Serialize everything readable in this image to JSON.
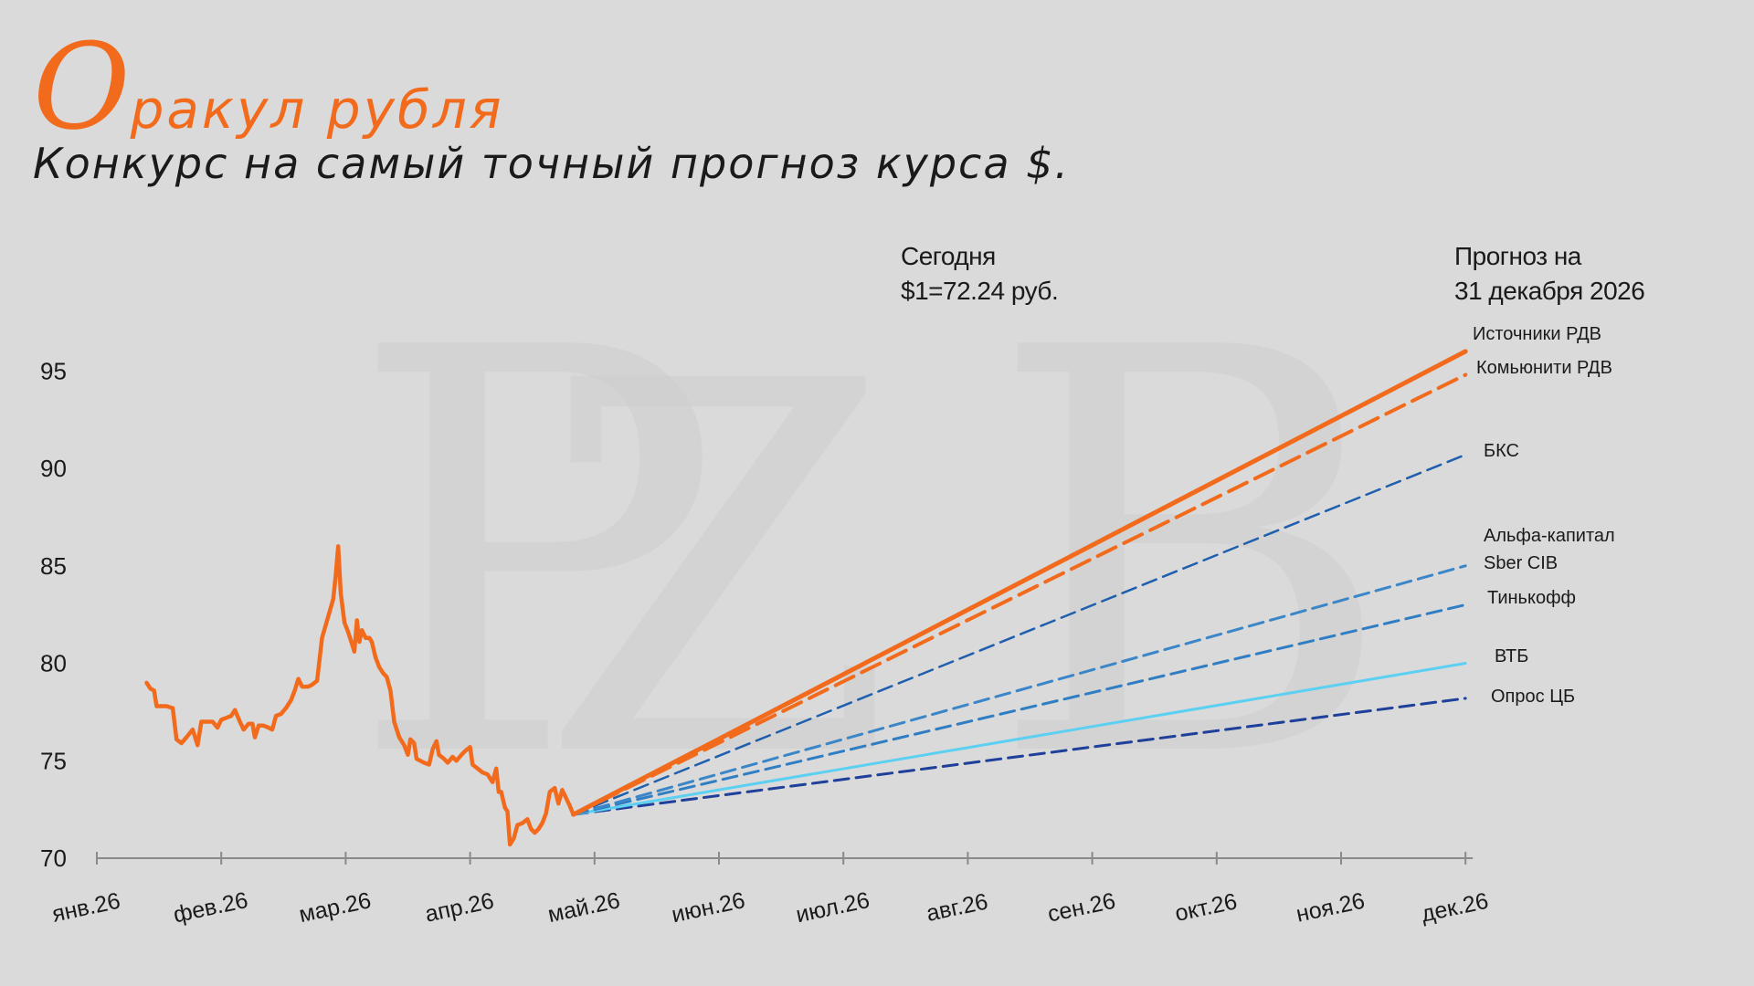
{
  "header": {
    "title_initial": "О",
    "title_rest": "ракул рубля",
    "subtitle": "Конкурс на самый точный прогноз курса $."
  },
  "annotations": {
    "today_line1": "Сегодня",
    "today_line2": "$1=72.24 руб.",
    "forecast_line1": "Прогноз на",
    "forecast_line2": "31 декабря 2026"
  },
  "colors": {
    "background": "#dadada",
    "history": "#f26b1d",
    "axis": "#8a8a8a"
  },
  "chart_data": {
    "type": "line",
    "title": "",
    "xlabel": "",
    "ylabel": "",
    "ylim": [
      70,
      97
    ],
    "yticks": [
      70,
      75,
      80,
      85,
      90,
      95
    ],
    "x_range": [
      0,
      11
    ],
    "x_ticks": [
      {
        "x": 0,
        "label": "янв.26"
      },
      {
        "x": 1,
        "label": "фев.26"
      },
      {
        "x": 2,
        "label": "мар.26"
      },
      {
        "x": 3,
        "label": "апр.26"
      },
      {
        "x": 4,
        "label": "май.26"
      },
      {
        "x": 5,
        "label": "июн.26"
      },
      {
        "x": 6,
        "label": "июл.26"
      },
      {
        "x": 7,
        "label": "авг.26"
      },
      {
        "x": 8,
        "label": "сен.26"
      },
      {
        "x": 9,
        "label": "окт.26"
      },
      {
        "x": 10,
        "label": "ноя.26"
      },
      {
        "x": 11,
        "label": "дек.26"
      }
    ],
    "grid": false,
    "history": {
      "color": "#f26b1d",
      "points": [
        [
          0.4,
          79.0
        ],
        [
          0.43,
          78.7
        ],
        [
          0.46,
          78.6
        ],
        [
          0.48,
          77.8
        ],
        [
          0.52,
          77.8
        ],
        [
          0.56,
          77.8
        ],
        [
          0.61,
          77.7
        ],
        [
          0.64,
          76.1
        ],
        [
          0.68,
          75.9
        ],
        [
          0.72,
          76.2
        ],
        [
          0.77,
          76.6
        ],
        [
          0.81,
          75.8
        ],
        [
          0.84,
          77.0
        ],
        [
          0.89,
          77.0
        ],
        [
          0.93,
          77.0
        ],
        [
          0.97,
          76.7
        ],
        [
          1.0,
          77.1
        ],
        [
          1.04,
          77.2
        ],
        [
          1.08,
          77.3
        ],
        [
          1.11,
          77.6
        ],
        [
          1.15,
          77.0
        ],
        [
          1.18,
          76.6
        ],
        [
          1.22,
          76.9
        ],
        [
          1.25,
          76.9
        ],
        [
          1.27,
          76.2
        ],
        [
          1.3,
          76.8
        ],
        [
          1.34,
          76.8
        ],
        [
          1.38,
          76.7
        ],
        [
          1.41,
          76.6
        ],
        [
          1.44,
          77.3
        ],
        [
          1.48,
          77.4
        ],
        [
          1.52,
          77.7
        ],
        [
          1.56,
          78.1
        ],
        [
          1.59,
          78.6
        ],
        [
          1.62,
          79.2
        ],
        [
          1.65,
          78.8
        ],
        [
          1.7,
          78.8
        ],
        [
          1.73,
          78.9
        ],
        [
          1.77,
          79.1
        ],
        [
          1.81,
          81.3
        ],
        [
          1.86,
          82.4
        ],
        [
          1.9,
          83.3
        ],
        [
          1.92,
          84.5
        ],
        [
          1.94,
          86.0
        ],
        [
          1.96,
          83.6
        ],
        [
          1.99,
          82.1
        ],
        [
          2.02,
          81.6
        ],
        [
          2.05,
          81.0
        ],
        [
          2.07,
          80.6
        ],
        [
          2.09,
          82.2
        ],
        [
          2.11,
          81.1
        ],
        [
          2.13,
          81.7
        ],
        [
          2.16,
          81.3
        ],
        [
          2.19,
          81.3
        ],
        [
          2.21,
          81.1
        ],
        [
          2.24,
          80.3
        ],
        [
          2.27,
          79.8
        ],
        [
          2.3,
          79.5
        ],
        [
          2.33,
          79.3
        ],
        [
          2.36,
          78.6
        ],
        [
          2.39,
          77.0
        ],
        [
          2.43,
          76.2
        ],
        [
          2.47,
          75.8
        ],
        [
          2.5,
          75.3
        ],
        [
          2.52,
          76.1
        ],
        [
          2.55,
          75.9
        ],
        [
          2.57,
          75.1
        ],
        [
          2.6,
          75.0
        ],
        [
          2.63,
          74.9
        ],
        [
          2.67,
          74.8
        ],
        [
          2.7,
          75.6
        ],
        [
          2.73,
          76.0
        ],
        [
          2.75,
          75.3
        ],
        [
          2.79,
          75.1
        ],
        [
          2.82,
          74.9
        ],
        [
          2.86,
          75.2
        ],
        [
          2.89,
          75.0
        ],
        [
          2.93,
          75.3
        ],
        [
          2.96,
          75.5
        ],
        [
          3.0,
          75.7
        ],
        [
          3.02,
          74.8
        ],
        [
          3.06,
          74.6
        ],
        [
          3.1,
          74.4
        ],
        [
          3.14,
          74.3
        ],
        [
          3.18,
          73.9
        ],
        [
          3.21,
          74.6
        ],
        [
          3.23,
          73.4
        ],
        [
          3.25,
          73.4
        ],
        [
          3.28,
          72.6
        ],
        [
          3.3,
          72.4
        ],
        [
          3.32,
          70.7
        ],
        [
          3.35,
          71.0
        ],
        [
          3.38,
          71.7
        ],
        [
          3.42,
          71.8
        ],
        [
          3.46,
          72.0
        ],
        [
          3.49,
          71.5
        ],
        [
          3.52,
          71.3
        ],
        [
          3.55,
          71.5
        ],
        [
          3.58,
          71.8
        ],
        [
          3.61,
          72.3
        ],
        [
          3.64,
          73.4
        ],
        [
          3.68,
          73.6
        ],
        [
          3.71,
          72.8
        ],
        [
          3.74,
          73.5
        ],
        [
          3.77,
          73.1
        ],
        [
          3.8,
          72.7
        ],
        [
          3.83,
          72.24
        ]
      ]
    },
    "forecasts": [
      {
        "name": "Источники РДВ",
        "end": 96.0,
        "color": "#f26b1d",
        "style": "solid",
        "width": 5
      },
      {
        "name": "Комьюнити РДВ",
        "end": 94.8,
        "color": "#f26b1d",
        "style": "dashed",
        "width": 4
      },
      {
        "name": "БКС",
        "end": 90.7,
        "color": "#1f5fae",
        "style": "dashed",
        "width": 2.5
      },
      {
        "name": "Альфа-капитал",
        "end": 85.2,
        "color": "#3a86c8",
        "style": "dashed",
        "width": 3,
        "label_only": true
      },
      {
        "name": "Sber CIB",
        "end": 85.0,
        "color": "#3a86c8",
        "style": "dashed",
        "width": 3
      },
      {
        "name": "Тинькофф",
        "end": 83.0,
        "color": "#2f7ec4",
        "style": "dashed",
        "width": 3
      },
      {
        "name": "ВТБ",
        "end": 80.0,
        "color": "#5bd0f2",
        "style": "solid",
        "width": 3
      },
      {
        "name": "Опрос ЦБ",
        "end": 78.2,
        "color": "#1e3f9a",
        "style": "dashed",
        "width": 3
      }
    ],
    "start_point": {
      "x": 3.83,
      "y": 72.24
    },
    "end_x": 11
  }
}
